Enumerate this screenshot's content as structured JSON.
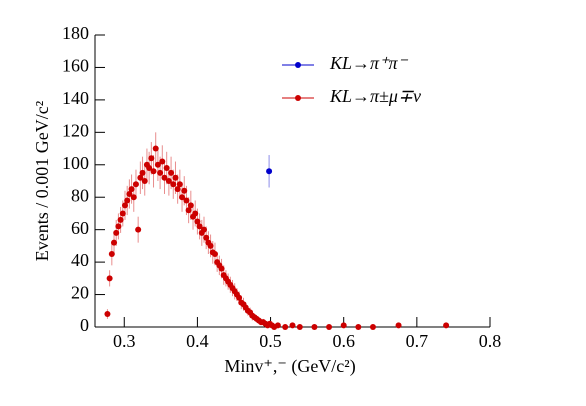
{
  "chart_data": {
    "type": "scatter",
    "xlabel": "Minv⁺,⁻ (GeV/c²)",
    "ylabel": "Events /  0.001 GeV/c²",
    "xlim": [
      0.26,
      0.8
    ],
    "ylim": [
      0,
      180
    ],
    "xticks": [
      0.3,
      0.4,
      0.5,
      0.6,
      0.7,
      0.8
    ],
    "yticks": [
      0,
      20,
      40,
      60,
      80,
      100,
      120,
      140,
      160,
      180
    ],
    "legend": "upper right",
    "series": [
      {
        "name": "KL→π⁺π⁻",
        "color": "#0000cc",
        "x": [
          0.498
        ],
        "values": [
          96
        ],
        "errors": [
          10
        ]
      },
      {
        "name": "KL→π±μ∓ν",
        "color": "#cc0000",
        "x": [
          0.277,
          0.28,
          0.283,
          0.286,
          0.289,
          0.292,
          0.295,
          0.298,
          0.301,
          0.304,
          0.307,
          0.31,
          0.313,
          0.316,
          0.319,
          0.322,
          0.325,
          0.328,
          0.331,
          0.334,
          0.337,
          0.34,
          0.343,
          0.346,
          0.349,
          0.352,
          0.355,
          0.358,
          0.361,
          0.364,
          0.367,
          0.37,
          0.373,
          0.376,
          0.379,
          0.382,
          0.385,
          0.388,
          0.391,
          0.394,
          0.397,
          0.4,
          0.403,
          0.406,
          0.409,
          0.412,
          0.415,
          0.418,
          0.421,
          0.424,
          0.427,
          0.43,
          0.433,
          0.436,
          0.439,
          0.442,
          0.445,
          0.448,
          0.451,
          0.454,
          0.457,
          0.46,
          0.463,
          0.466,
          0.469,
          0.472,
          0.475,
          0.478,
          0.481,
          0.484,
          0.487,
          0.49,
          0.493,
          0.496,
          0.499,
          0.502,
          0.505,
          0.51,
          0.52,
          0.53,
          0.54,
          0.56,
          0.58,
          0.6,
          0.62,
          0.64,
          0.675,
          0.74
        ],
        "values": [
          8,
          30,
          45,
          52,
          58,
          62,
          66,
          70,
          75,
          78,
          82,
          85,
          80,
          88,
          60,
          92,
          95,
          90,
          100,
          98,
          104,
          96,
          110,
          100,
          95,
          102,
          92,
          98,
          90,
          95,
          88,
          92,
          85,
          88,
          80,
          84,
          78,
          72,
          75,
          68,
          70,
          65,
          62,
          58,
          60,
          55,
          52,
          50,
          46,
          45,
          40,
          38,
          36,
          32,
          30,
          28,
          26,
          24,
          22,
          20,
          18,
          15,
          14,
          12,
          10,
          9,
          7,
          6,
          5,
          4,
          3,
          3,
          2,
          1,
          2,
          1,
          0,
          1,
          0,
          1,
          0,
          0,
          0,
          1,
          0,
          0,
          1,
          1
        ],
        "errors": [
          3,
          5,
          7,
          7,
          8,
          8,
          8,
          8,
          9,
          9,
          9,
          9,
          9,
          9,
          8,
          10,
          10,
          9,
          10,
          10,
          10,
          10,
          10,
          10,
          10,
          10,
          10,
          10,
          9,
          10,
          9,
          10,
          9,
          9,
          9,
          9,
          9,
          8,
          9,
          8,
          8,
          8,
          8,
          8,
          8,
          7,
          7,
          7,
          7,
          7,
          6,
          6,
          6,
          6,
          5,
          5,
          5,
          5,
          5,
          4,
          4,
          4,
          4,
          3,
          3,
          3,
          3,
          2,
          2,
          2,
          2,
          2,
          1,
          1,
          1,
          1,
          0,
          1,
          0,
          1,
          0,
          0,
          0,
          1,
          0,
          0,
          1,
          1
        ]
      }
    ]
  }
}
